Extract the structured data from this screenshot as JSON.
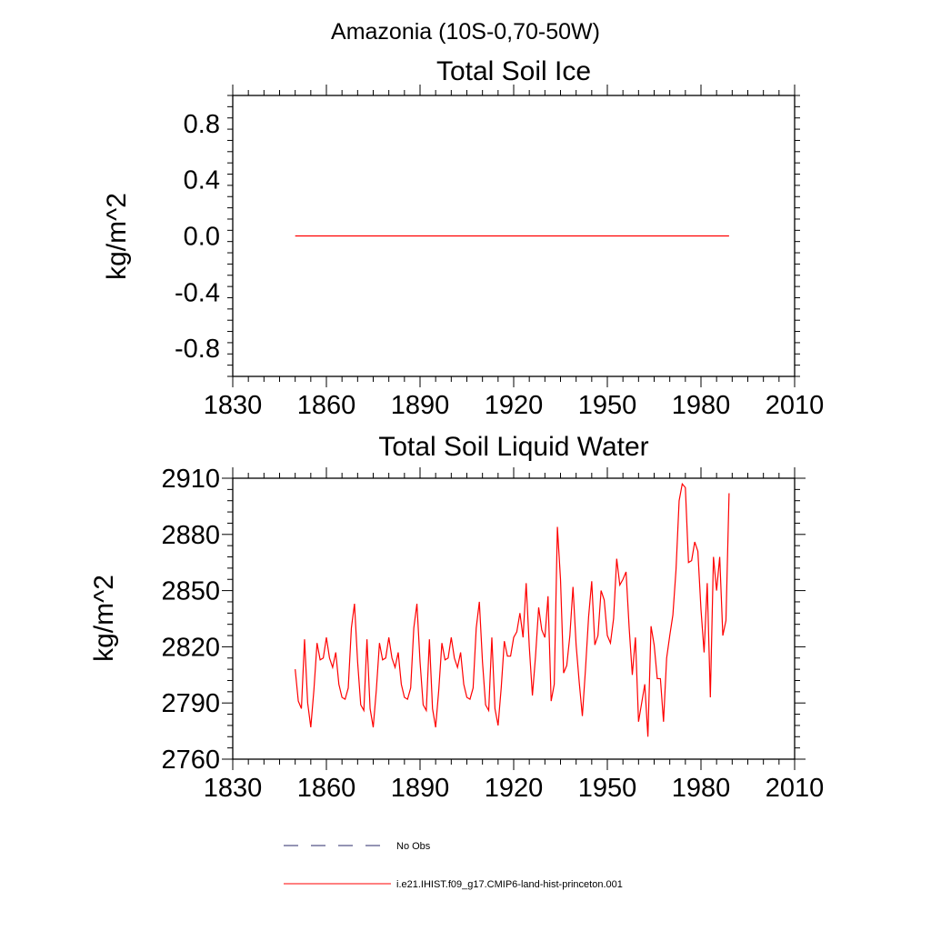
{
  "title": "Amazonia (10S-0,70-50W)",
  "chart_data": [
    {
      "type": "line",
      "title": "Total Soil Ice",
      "ylabel": "kg/m^2",
      "xlim": [
        1830,
        2010
      ],
      "ylim": [
        -1.0,
        1.0
      ],
      "xticks": [
        "1830",
        "1860",
        "1890",
        "1920",
        "1950",
        "1980",
        "2010"
      ],
      "yticks": [
        "0.8",
        "0.4",
        "0.0",
        "-0.4",
        "-0.8"
      ],
      "x_start": 1850,
      "x_end": 1989,
      "series": [
        {
          "name": "i.e21.IHIST.f09_g17.CMIP6-land-hist-princeton.001",
          "color": "#ff0000",
          "constant_value": 0.0
        }
      ]
    },
    {
      "type": "line",
      "title": "Total Soil Liquid Water",
      "ylabel": "kg/m^2",
      "xlim": [
        1830,
        2010
      ],
      "ylim": [
        2760,
        2910
      ],
      "xticks": [
        "1830",
        "1860",
        "1890",
        "1920",
        "1950",
        "1980",
        "2010"
      ],
      "yticks": [
        "2910",
        "2880",
        "2850",
        "2820",
        "2790",
        "2760"
      ],
      "x_start": 1850,
      "series": [
        {
          "name": "i.e21.IHIST.f09_g17.CMIP6-land-hist-princeton.001",
          "color": "#ff0000",
          "values": [
            2808,
            2791,
            2787,
            2824,
            2790,
            2777,
            2797,
            2822,
            2813,
            2814,
            2825,
            2814,
            2809,
            2817,
            2800,
            2793,
            2792,
            2798,
            2830,
            2843,
            2812,
            2789,
            2786,
            2824,
            2787,
            2777,
            2797,
            2822,
            2813,
            2814,
            2825,
            2814,
            2809,
            2817,
            2800,
            2793,
            2792,
            2798,
            2830,
            2843,
            2812,
            2789,
            2786,
            2824,
            2787,
            2777,
            2797,
            2822,
            2813,
            2814,
            2825,
            2814,
            2809,
            2817,
            2800,
            2793,
            2792,
            2798,
            2830,
            2844,
            2812,
            2789,
            2786,
            2825,
            2787,
            2778,
            2798,
            2823,
            2815,
            2815,
            2825,
            2828,
            2838,
            2825,
            2854,
            2820,
            2794,
            2815,
            2841,
            2829,
            2825,
            2847,
            2791,
            2800,
            2884,
            2856,
            2806,
            2810,
            2826,
            2852,
            2821,
            2801,
            2783,
            2808,
            2836,
            2855,
            2821,
            2826,
            2850,
            2845,
            2826,
            2822,
            2835,
            2867,
            2853,
            2856,
            2860,
            2830,
            2805,
            2825,
            2780,
            2790,
            2800,
            2772,
            2831,
            2821,
            2803,
            2803,
            2780,
            2814,
            2826,
            2837,
            2861,
            2898,
            2907,
            2905,
            2865,
            2866,
            2876,
            2871,
            2840,
            2817,
            2854,
            2793,
            2868,
            2850,
            2868,
            2826,
            2834,
            2902
          ]
        }
      ]
    }
  ],
  "legend": [
    {
      "label": "No Obs",
      "style": "dashed",
      "color": "#2a2a6a"
    },
    {
      "label": "i.e21.IHIST.f09_g17.CMIP6-land-hist-princeton.001",
      "style": "solid",
      "color": "#ff0000"
    }
  ]
}
